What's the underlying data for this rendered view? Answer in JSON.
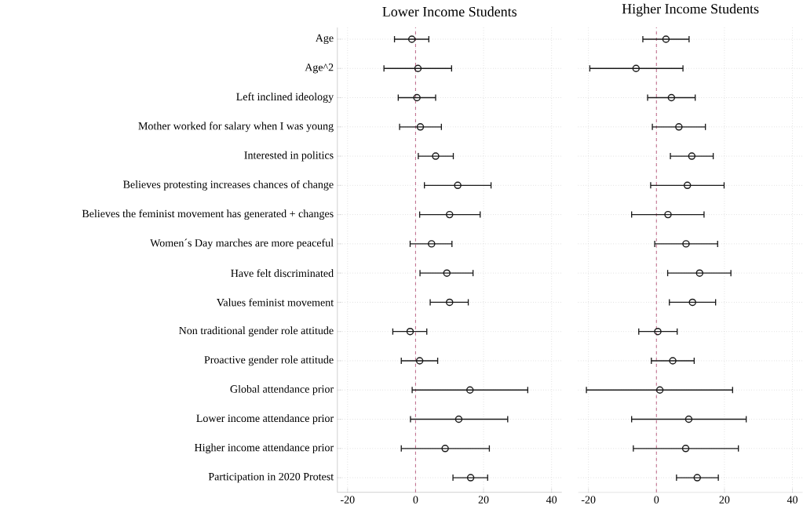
{
  "chart_data": [
    {
      "type": "scatter",
      "orientation": "horizontal",
      "title": "Lower Income Students",
      "categories": [
        "Age",
        "Age^2",
        "Left inclined ideology",
        "Mother worked for salary when I was young",
        "Interested in politics",
        "Believes protesting increases chances of change",
        "Believes the feminist movement has generated + changes",
        "Women´s Day marches are more peaceful",
        "Have felt discriminated",
        "Values feminist movement",
        "Non traditional gender role attitude",
        "Proactive gender role attitude",
        "Global attendance prior",
        "Lower income attendance prior",
        "Higher income attendance prior",
        "Participation in 2020 Protest"
      ],
      "values": [
        -1.1,
        0.7,
        0.4,
        1.4,
        5.9,
        12.4,
        10.0,
        4.7,
        9.2,
        10.0,
        -1.6,
        1.2,
        16.0,
        12.7,
        8.7,
        16.2
      ],
      "errors": [
        [
          -6.2,
          3.9
        ],
        [
          -9.3,
          10.6
        ],
        [
          -5.1,
          5.9
        ],
        [
          -4.7,
          7.6
        ],
        [
          0.8,
          11.1
        ],
        [
          2.6,
          22.2
        ],
        [
          1.2,
          19.0
        ],
        [
          -1.6,
          10.7
        ],
        [
          1.3,
          16.9
        ],
        [
          4.3,
          15.5
        ],
        [
          -6.7,
          3.3
        ],
        [
          -4.2,
          6.5
        ],
        [
          -1.0,
          33.0
        ],
        [
          -1.5,
          27.1
        ],
        [
          -4.2,
          21.7
        ],
        [
          11.0,
          21.2
        ]
      ],
      "color": "#1a1a1a",
      "marker": "circle",
      "xlim": [
        -23,
        43
      ],
      "xticks": [
        -20,
        0,
        20,
        40
      ],
      "grid": true,
      "ref_lines": [
        {
          "axis": "x",
          "value": 0,
          "color": "#c0708e",
          "line_style": "dashed"
        }
      ]
    },
    {
      "type": "scatter",
      "orientation": "horizontal",
      "title": "Higher Income Students",
      "categories": [
        null,
        null,
        null,
        null,
        null,
        null,
        null,
        null,
        null,
        null,
        null,
        null,
        null,
        null,
        null,
        null
      ],
      "values": [
        2.8,
        -6.0,
        4.4,
        6.6,
        10.4,
        9.1,
        3.4,
        8.7,
        12.7,
        10.6,
        0.4,
        4.8,
        1.0,
        9.5,
        8.6,
        12.0
      ],
      "errors": [
        [
          -4.0,
          9.6
        ],
        [
          -19.6,
          7.8
        ],
        [
          -2.6,
          11.4
        ],
        [
          -1.2,
          14.4
        ],
        [
          4.1,
          16.7
        ],
        [
          -1.7,
          19.9
        ],
        [
          -7.3,
          14.0
        ],
        [
          -0.5,
          18.0
        ],
        [
          3.3,
          21.9
        ],
        [
          3.8,
          17.4
        ],
        [
          -5.2,
          6.1
        ],
        [
          -1.5,
          11.1
        ],
        [
          -20.6,
          22.4
        ],
        [
          -7.3,
          26.4
        ],
        [
          -6.8,
          24.1
        ],
        [
          5.9,
          18.2
        ]
      ],
      "color": "#1a1a1a",
      "marker": "circle",
      "xlim": [
        -23,
        43
      ],
      "xticks": [
        -20,
        0,
        20,
        40
      ],
      "grid": true,
      "tick_labels": "x",
      "ref_lines": [
        {
          "axis": "x",
          "value": 0,
          "color": "#c0708e",
          "line_style": "dashed"
        }
      ]
    }
  ]
}
